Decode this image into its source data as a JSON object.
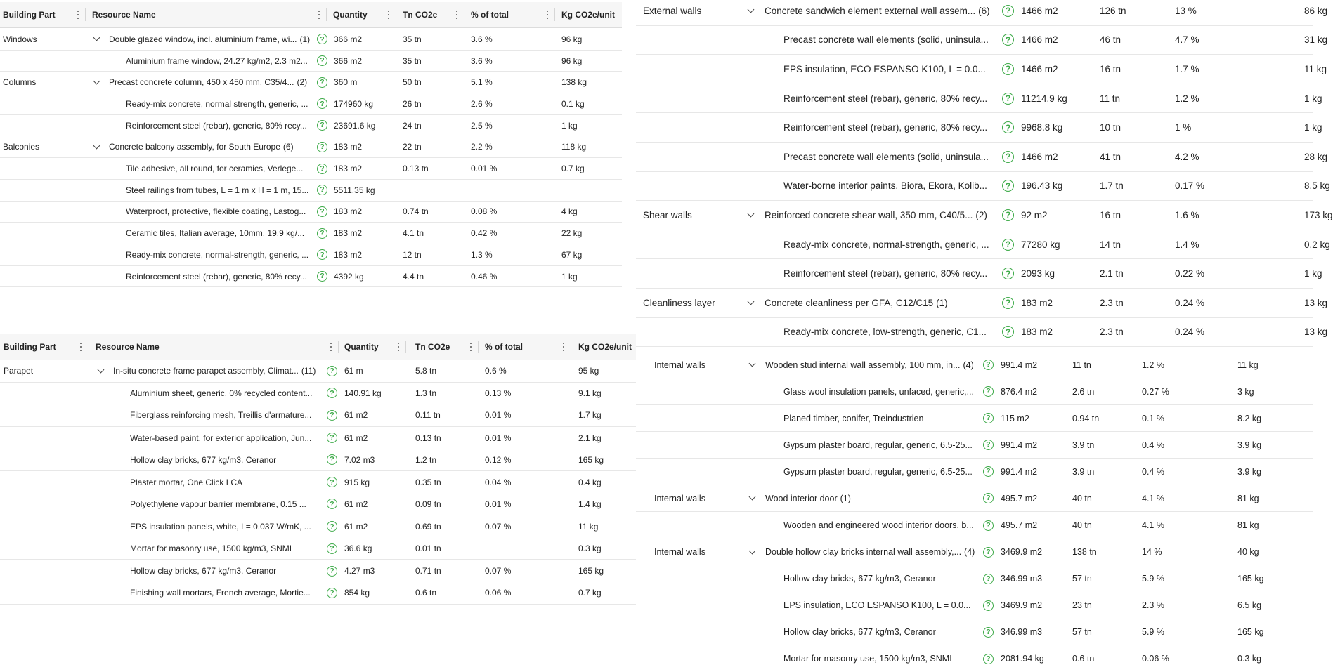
{
  "columns": {
    "building_part": "Building Part",
    "resource_name": "Resource Name",
    "quantity": "Quantity",
    "co2": "Tn CO2e",
    "pct": "% of total",
    "kg_unit": "Kg CO2e/unit"
  },
  "help_glyph": "?",
  "left_top": {
    "rows": [
      {
        "part": "Windows",
        "group": true,
        "name": "Double glazed window, incl. aluminium frame, wi...",
        "count": "(1)",
        "qty": "366 m2",
        "co2": "35 tn",
        "pct": "3.6 %",
        "kg": "96 kg"
      },
      {
        "part": "",
        "group": false,
        "name": "Aluminium frame window, 24.27 kg/m2, 2.3 m2...",
        "count": "",
        "qty": "366 m2",
        "co2": "35 tn",
        "pct": "3.6 %",
        "kg": "96 kg"
      },
      {
        "part": "Columns",
        "group": true,
        "name": "Precast concrete column, 450 x 450 mm, C35/4...",
        "count": "(2)",
        "qty": "360 m",
        "co2": "50 tn",
        "pct": "5.1 %",
        "kg": "138 kg"
      },
      {
        "part": "",
        "group": false,
        "name": "Ready-mix concrete, normal strength, generic, ...",
        "count": "",
        "qty": "174960 kg",
        "co2": "26 tn",
        "pct": "2.6 %",
        "kg": "0.1 kg"
      },
      {
        "part": "",
        "group": false,
        "name": "Reinforcement steel (rebar), generic, 80% recy...",
        "count": "",
        "qty": "23691.6 kg",
        "co2": "24 tn",
        "pct": "2.5 %",
        "kg": "1 kg"
      },
      {
        "part": "Balconies",
        "group": true,
        "name": "Concrete balcony assembly, for South Europe",
        "count": "(6)",
        "qty": "183 m2",
        "co2": "22 tn",
        "pct": "2.2 %",
        "kg": "118 kg"
      },
      {
        "part": "",
        "group": false,
        "name": "Tile adhesive, all round, for ceramics, Verlege...",
        "count": "",
        "qty": "183 m2",
        "co2": "0.13 tn",
        "pct": "0.01 %",
        "kg": "0.7 kg"
      },
      {
        "part": "",
        "group": false,
        "name": "Steel railings from tubes, L = 1 m x H = 1 m, 15...",
        "count": "",
        "qty": "5511.35 kg",
        "co2": "",
        "pct": "",
        "kg": ""
      },
      {
        "part": "",
        "group": false,
        "name": "Waterproof, protective, flexible coating, Lastog...",
        "count": "",
        "qty": "183 m2",
        "co2": "0.74 tn",
        "pct": "0.08 %",
        "kg": "4 kg"
      },
      {
        "part": "",
        "group": false,
        "name": "Ceramic tiles, Italian average, 10mm, 19.9 kg/...",
        "count": "",
        "qty": "183 m2",
        "co2": "4.1 tn",
        "pct": "0.42 %",
        "kg": "22 kg"
      },
      {
        "part": "",
        "group": false,
        "name": "Ready-mix concrete, normal-strength, generic, ...",
        "count": "",
        "qty": "183 m2",
        "co2": "12 tn",
        "pct": "1.3 %",
        "kg": "67 kg"
      },
      {
        "part": "",
        "group": false,
        "name": "Reinforcement steel (rebar), generic, 80% recy...",
        "count": "",
        "qty": "4392 kg",
        "co2": "4.4 tn",
        "pct": "0.46 %",
        "kg": "1 kg"
      }
    ]
  },
  "left_bottom": {
    "rows": [
      {
        "part": "Parapet",
        "group": true,
        "name": "In-situ concrete frame parapet assembly, Climat...",
        "count": "(11)",
        "qty": "61 m",
        "co2": "5.8 tn",
        "pct": "0.6 %",
        "kg": "95 kg"
      },
      {
        "part": "",
        "group": false,
        "name": "Aluminium sheet, generic, 0% recycled content...",
        "count": "",
        "qty": "140.91 kg",
        "co2": "1.3 tn",
        "pct": "0.13 %",
        "kg": "9.1 kg"
      },
      {
        "part": "",
        "group": false,
        "name": "Fiberglass reinforcing mesh, Treillis d'armature...",
        "count": "",
        "qty": "61 m2",
        "co2": "0.11 tn",
        "pct": "0.01 %",
        "kg": "1.7 kg"
      },
      {
        "part": "",
        "group": false,
        "name": "Water-based paint, for exterior application, Jun...",
        "count": "",
        "qty": "61 m2",
        "co2": "0.13 tn",
        "pct": "0.01 %",
        "kg": "2.1 kg"
      },
      {
        "part": "",
        "group": false,
        "name": "Hollow clay bricks, 677 kg/m3, Ceranor",
        "count": "",
        "qty": "7.02 m3",
        "co2": "1.2 tn",
        "pct": "0.12 %",
        "kg": "165 kg"
      },
      {
        "part": "",
        "group": false,
        "name": "Plaster mortar, One Click LCA",
        "count": "",
        "qty": "915 kg",
        "co2": "0.35 tn",
        "pct": "0.04 %",
        "kg": "0.4 kg"
      },
      {
        "part": "",
        "group": false,
        "name": "Polyethylene vapour barrier membrane, 0.15 ...",
        "count": "",
        "qty": "61 m2",
        "co2": "0.09 tn",
        "pct": "0.01 %",
        "kg": "1.4 kg"
      },
      {
        "part": "",
        "group": false,
        "name": "EPS insulation panels, white, L= 0.037 W/mK, ...",
        "count": "",
        "qty": "61 m2",
        "co2": "0.69 tn",
        "pct": "0.07 %",
        "kg": "11 kg"
      },
      {
        "part": "",
        "group": false,
        "name": "Mortar for masonry use, 1500 kg/m3, SNMI",
        "count": "",
        "qty": "36.6 kg",
        "co2": "0.01 tn",
        "pct": "",
        "kg": "0.3 kg"
      },
      {
        "part": "",
        "group": false,
        "name": "Hollow clay bricks, 677 kg/m3, Ceranor",
        "count": "",
        "qty": "4.27 m3",
        "co2": "0.71 tn",
        "pct": "0.07 %",
        "kg": "165 kg"
      },
      {
        "part": "",
        "group": false,
        "name": "Finishing wall mortars, French average, Mortie...",
        "count": "",
        "qty": "854 kg",
        "co2": "0.6 tn",
        "pct": "0.06 %",
        "kg": "0.7 kg"
      }
    ]
  },
  "right_top": {
    "rows": [
      {
        "part": "External walls",
        "group": true,
        "name": "Concrete sandwich element external wall assem...",
        "count": "(6)",
        "qty": "1466 m2",
        "co2": "126 tn",
        "pct": "13 %",
        "kg": "86 kg"
      },
      {
        "part": "",
        "group": false,
        "name": "Precast concrete wall elements (solid, uninsula...",
        "count": "",
        "qty": "1466 m2",
        "co2": "46 tn",
        "pct": "4.7 %",
        "kg": "31 kg"
      },
      {
        "part": "",
        "group": false,
        "name": "EPS insulation, ECO ESPANSO K100, L = 0.0...",
        "count": "",
        "qty": "1466 m2",
        "co2": "16 tn",
        "pct": "1.7 %",
        "kg": "11 kg"
      },
      {
        "part": "",
        "group": false,
        "name": "Reinforcement steel (rebar), generic, 80% recy...",
        "count": "",
        "qty": "11214.9 kg",
        "co2": "11 tn",
        "pct": "1.2 %",
        "kg": "1 kg"
      },
      {
        "part": "",
        "group": false,
        "name": "Reinforcement steel (rebar), generic, 80% recy...",
        "count": "",
        "qty": "9968.8 kg",
        "co2": "10 tn",
        "pct": "1 %",
        "kg": "1 kg"
      },
      {
        "part": "",
        "group": false,
        "name": "Precast concrete wall elements (solid, uninsula...",
        "count": "",
        "qty": "1466 m2",
        "co2": "41 tn",
        "pct": "4.2 %",
        "kg": "28 kg"
      },
      {
        "part": "",
        "group": false,
        "name": "Water-borne interior paints, Biora, Ekora, Kolib...",
        "count": "",
        "qty": "196.43 kg",
        "co2": "1.7 tn",
        "pct": "0.17 %",
        "kg": "8.5 kg"
      },
      {
        "part": "Shear walls",
        "group": true,
        "name": "Reinforced concrete shear wall, 350 mm, C40/5...",
        "count": "(2)",
        "qty": "92 m2",
        "co2": "16 tn",
        "pct": "1.6 %",
        "kg": "173 kg"
      },
      {
        "part": "",
        "group": false,
        "name": "Ready-mix concrete, normal-strength, generic, ...",
        "count": "",
        "qty": "77280 kg",
        "co2": "14 tn",
        "pct": "1.4 %",
        "kg": "0.2 kg"
      },
      {
        "part": "",
        "group": false,
        "name": "Reinforcement steel (rebar), generic, 80% recy...",
        "count": "",
        "qty": "2093 kg",
        "co2": "2.1 tn",
        "pct": "0.22 %",
        "kg": "1 kg"
      },
      {
        "part": "Cleanliness layer",
        "group": true,
        "name": "Concrete cleanliness per GFA, C12/C15",
        "count": "(1)",
        "qty": "183 m2",
        "co2": "2.3 tn",
        "pct": "0.24 %",
        "kg": "13 kg"
      },
      {
        "part": "",
        "group": false,
        "name": "Ready-mix concrete, low-strength, generic, C1...",
        "count": "",
        "qty": "183 m2",
        "co2": "2.3 tn",
        "pct": "0.24 %",
        "kg": "13 kg"
      }
    ]
  },
  "right_bottom": {
    "rows": [
      {
        "part": "Internal walls",
        "group": true,
        "name": "Wooden stud internal wall assembly, 100 mm, in...",
        "count": "(4)",
        "qty": "991.4 m2",
        "co2": "11 tn",
        "pct": "1.2 %",
        "kg": "11 kg"
      },
      {
        "part": "",
        "group": false,
        "name": "Glass wool insulation panels, unfaced, generic,...",
        "count": "",
        "qty": "876.4 m2",
        "co2": "2.6 tn",
        "pct": "0.27 %",
        "kg": "3 kg"
      },
      {
        "part": "",
        "group": false,
        "name": "Planed timber, conifer, Treindustrien",
        "count": "",
        "qty": "115 m2",
        "co2": "0.94 tn",
        "pct": "0.1 %",
        "kg": "8.2 kg"
      },
      {
        "part": "",
        "group": false,
        "name": "Gypsum plaster board, regular, generic, 6.5-25...",
        "count": "",
        "qty": "991.4 m2",
        "co2": "3.9 tn",
        "pct": "0.4 %",
        "kg": "3.9 kg"
      },
      {
        "part": "",
        "group": false,
        "name": "Gypsum plaster board, regular, generic, 6.5-25...",
        "count": "",
        "qty": "991.4 m2",
        "co2": "3.9 tn",
        "pct": "0.4 %",
        "kg": "3.9 kg"
      },
      {
        "part": "Internal walls",
        "group": true,
        "name": "Wood interior door",
        "count": "(1)",
        "qty": "495.7 m2",
        "co2": "40 tn",
        "pct": "4.1 %",
        "kg": "81 kg"
      },
      {
        "part": "",
        "group": false,
        "name": "Wooden and engineered wood interior doors, b...",
        "count": "",
        "qty": "495.7 m2",
        "co2": "40 tn",
        "pct": "4.1 %",
        "kg": "81 kg"
      },
      {
        "part": "Internal walls",
        "group": true,
        "name": "Double hollow clay bricks internal wall assembly,...",
        "count": "(4)",
        "qty": "3469.9 m2",
        "co2": "138 tn",
        "pct": "14 %",
        "kg": "40 kg"
      },
      {
        "part": "",
        "group": false,
        "name": "Hollow clay bricks, 677 kg/m3, Ceranor",
        "count": "",
        "qty": "346.99 m3",
        "co2": "57 tn",
        "pct": "5.9 %",
        "kg": "165 kg"
      },
      {
        "part": "",
        "group": false,
        "name": "EPS insulation, ECO ESPANSO K100, L = 0.0...",
        "count": "",
        "qty": "3469.9 m2",
        "co2": "23 tn",
        "pct": "2.3 %",
        "kg": "6.5 kg"
      },
      {
        "part": "",
        "group": false,
        "name": "Hollow clay bricks, 677 kg/m3, Ceranor",
        "count": "",
        "qty": "346.99 m3",
        "co2": "57 tn",
        "pct": "5.9 %",
        "kg": "165 kg"
      },
      {
        "part": "",
        "group": false,
        "name": "Mortar for masonry use, 1500 kg/m3, SNMI",
        "count": "",
        "qty": "2081.94 kg",
        "co2": "0.6 tn",
        "pct": "0.06 %",
        "kg": "0.3 kg"
      }
    ]
  }
}
